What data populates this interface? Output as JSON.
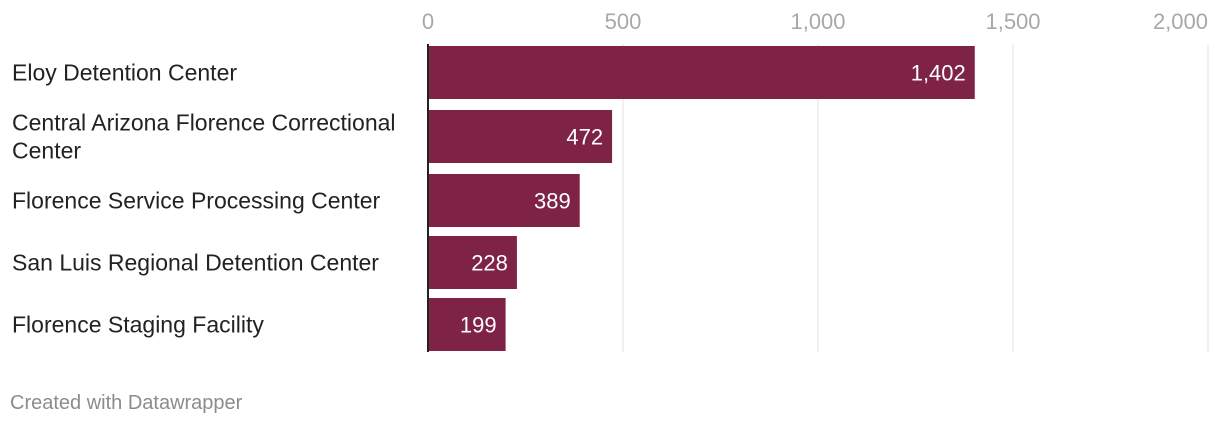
{
  "chart_data": {
    "type": "bar",
    "orientation": "horizontal",
    "categories": [
      "Eloy Detention Center",
      "Central Arizona Florence Correctional Center",
      "Florence Service Processing Center",
      "San Luis Regional Detention Center",
      "Florence Staging Facility"
    ],
    "values": [
      1402,
      472,
      389,
      228,
      199
    ],
    "value_labels": [
      "1,402",
      "472",
      "389",
      "228",
      "199"
    ],
    "xlim": [
      0,
      2000
    ],
    "x_ticks": [
      0,
      500,
      1000,
      1500,
      2000
    ],
    "x_tick_labels": [
      "0",
      "500",
      "1,000",
      "1,500",
      "2,000"
    ],
    "grid": true,
    "bar_color": "#7e2246",
    "title": "",
    "xlabel": "",
    "ylabel": ""
  },
  "footer": {
    "credit": "Created with Datawrapper"
  }
}
